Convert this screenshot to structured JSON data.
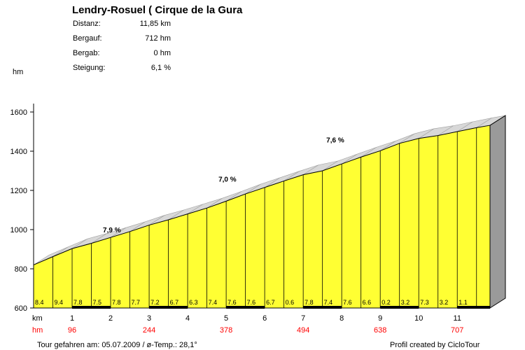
{
  "title": "Lendry-Rosuel ( Cirque de la Gura",
  "stats": [
    {
      "label": "Distanz:",
      "value": "11,85 km"
    },
    {
      "label": "Bergauf:",
      "value": "712 hm"
    },
    {
      "label": "Bergab:",
      "value": "0 hm"
    },
    {
      "label": "Steigung:",
      "value": "6,1 %"
    }
  ],
  "footer": {
    "left": "Tour gefahren am: 05.07.2009  /  ø-Temp.: 28,1°",
    "right": "Profil created by CicloTour"
  },
  "colors": {
    "fill": "#ffff33",
    "side": "#9a9a9a",
    "top": "#d8d8d8",
    "red": "#ff0000"
  },
  "chart_data": {
    "type": "area",
    "title": "Lendry-Rosuel ( Cirque de la Gura",
    "ylabel": "hm",
    "xlabel": "km",
    "ylim": [
      600,
      1600
    ],
    "xlim": [
      0,
      11.85
    ],
    "y_ticks": [
      600,
      800,
      1000,
      1200,
      1400,
      1600
    ],
    "x_ticks": [
      1,
      2,
      3,
      4,
      5,
      6,
      7,
      8,
      9,
      10,
      11
    ],
    "profile_x": [
      0,
      0.5,
      1,
      1.5,
      2,
      2.5,
      3,
      3.5,
      4,
      4.5,
      5,
      5.5,
      6,
      6.5,
      7,
      7.5,
      8,
      8.5,
      9,
      9.5,
      10,
      10.5,
      11,
      11.5,
      11.85
    ],
    "profile_y": [
      820,
      862,
      903,
      930,
      960,
      990,
      1023,
      1050,
      1080,
      1110,
      1145,
      1182,
      1215,
      1248,
      1280,
      1300,
      1335,
      1370,
      1402,
      1440,
      1465,
      1480,
      1500,
      1520,
      1532
    ],
    "segment_gradients": [
      "8.4",
      "9.4",
      "7.8",
      "7.5",
      "7.8",
      "7.7",
      "7.2",
      "6.7",
      "6.3",
      "7.4",
      "7.6",
      "7.6",
      "6.7",
      "0.6",
      "7.8",
      "7.4",
      "7.6",
      "6.6",
      "0.2",
      "3.2",
      "7.3",
      "3.2",
      "1.1"
    ],
    "annotations": [
      {
        "text": "7,9 %",
        "x": 1.8,
        "y": 985
      },
      {
        "text": "7,0 %",
        "x": 4.8,
        "y": 1245
      },
      {
        "text": "7,6 %",
        "x": 7.6,
        "y": 1445
      }
    ],
    "hm_marks": [
      {
        "km": 1,
        "value": "96"
      },
      {
        "km": 3,
        "value": "244"
      },
      {
        "km": 5,
        "value": "378"
      },
      {
        "km": 7,
        "value": "494"
      },
      {
        "km": 9,
        "value": "638"
      },
      {
        "km": 11,
        "value": "707"
      }
    ],
    "km_label": "km",
    "hm_label": "hm"
  }
}
